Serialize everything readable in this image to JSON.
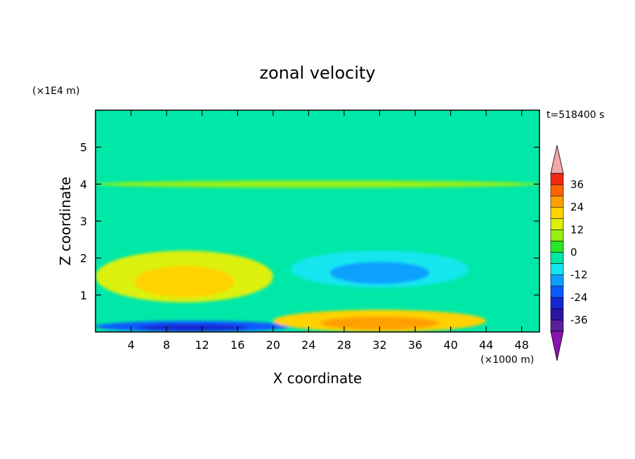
{
  "chart_data": {
    "type": "heatmap",
    "title": "zonal velocity",
    "xlabel": "X coordinate",
    "ylabel": "Z coordinate",
    "x_unit": "(×1000 m)",
    "y_unit": "(×1E4 m)",
    "time_label": "t=518400 s",
    "xlim": [
      0,
      50
    ],
    "ylim": [
      0,
      6
    ],
    "x_ticks": [
      "4",
      "8",
      "12",
      "16",
      "20",
      "24",
      "28",
      "32",
      "36",
      "40",
      "44",
      "48"
    ],
    "y_ticks": [
      "1",
      "2",
      "3",
      "4",
      "5"
    ],
    "colorbar": {
      "tick_labels": [
        "36",
        "24",
        "12",
        "0",
        "-12",
        "-24",
        "-36"
      ],
      "levels": [
        -42,
        -36,
        -30,
        -24,
        -18,
        -12,
        -6,
        0,
        6,
        12,
        18,
        24,
        30,
        36,
        42
      ],
      "band_colors": [
        "#5a1e9e",
        "#2a14a6",
        "#1428d2",
        "#0a5aff",
        "#0aa0ff",
        "#12e6f0",
        "#00e8a8",
        "#28e628",
        "#96f014",
        "#dcf00a",
        "#ffd200",
        "#ffa000",
        "#ff6400",
        "#f02814"
      ],
      "under_color": "#8c14b4",
      "over_color": "#f4a8a8"
    },
    "field_structure": [
      {
        "feature": "near-surface westward jet",
        "x": [
          0,
          22
        ],
        "z": [
          0,
          0.3
        ],
        "value": -24
      },
      {
        "feature": "near-surface eastward jet",
        "x": [
          20,
          44
        ],
        "z": [
          0,
          0.6
        ],
        "value": 18
      },
      {
        "feature": "low-level eastward maximum",
        "x": [
          0,
          20
        ],
        "z": [
          0.8,
          2.2
        ],
        "value": 12
      },
      {
        "feature": "mid-level westward core",
        "x": [
          22,
          42
        ],
        "z": [
          1.2,
          2.2
        ],
        "value": -12
      },
      {
        "feature": "eastward layer",
        "x": [
          0,
          50
        ],
        "z": [
          3.9,
          4.1
        ],
        "value": 8
      },
      {
        "feature": "weak westward layer",
        "x": [
          0,
          50
        ],
        "z": [
          5.2,
          6
        ],
        "value": -3
      }
    ]
  }
}
